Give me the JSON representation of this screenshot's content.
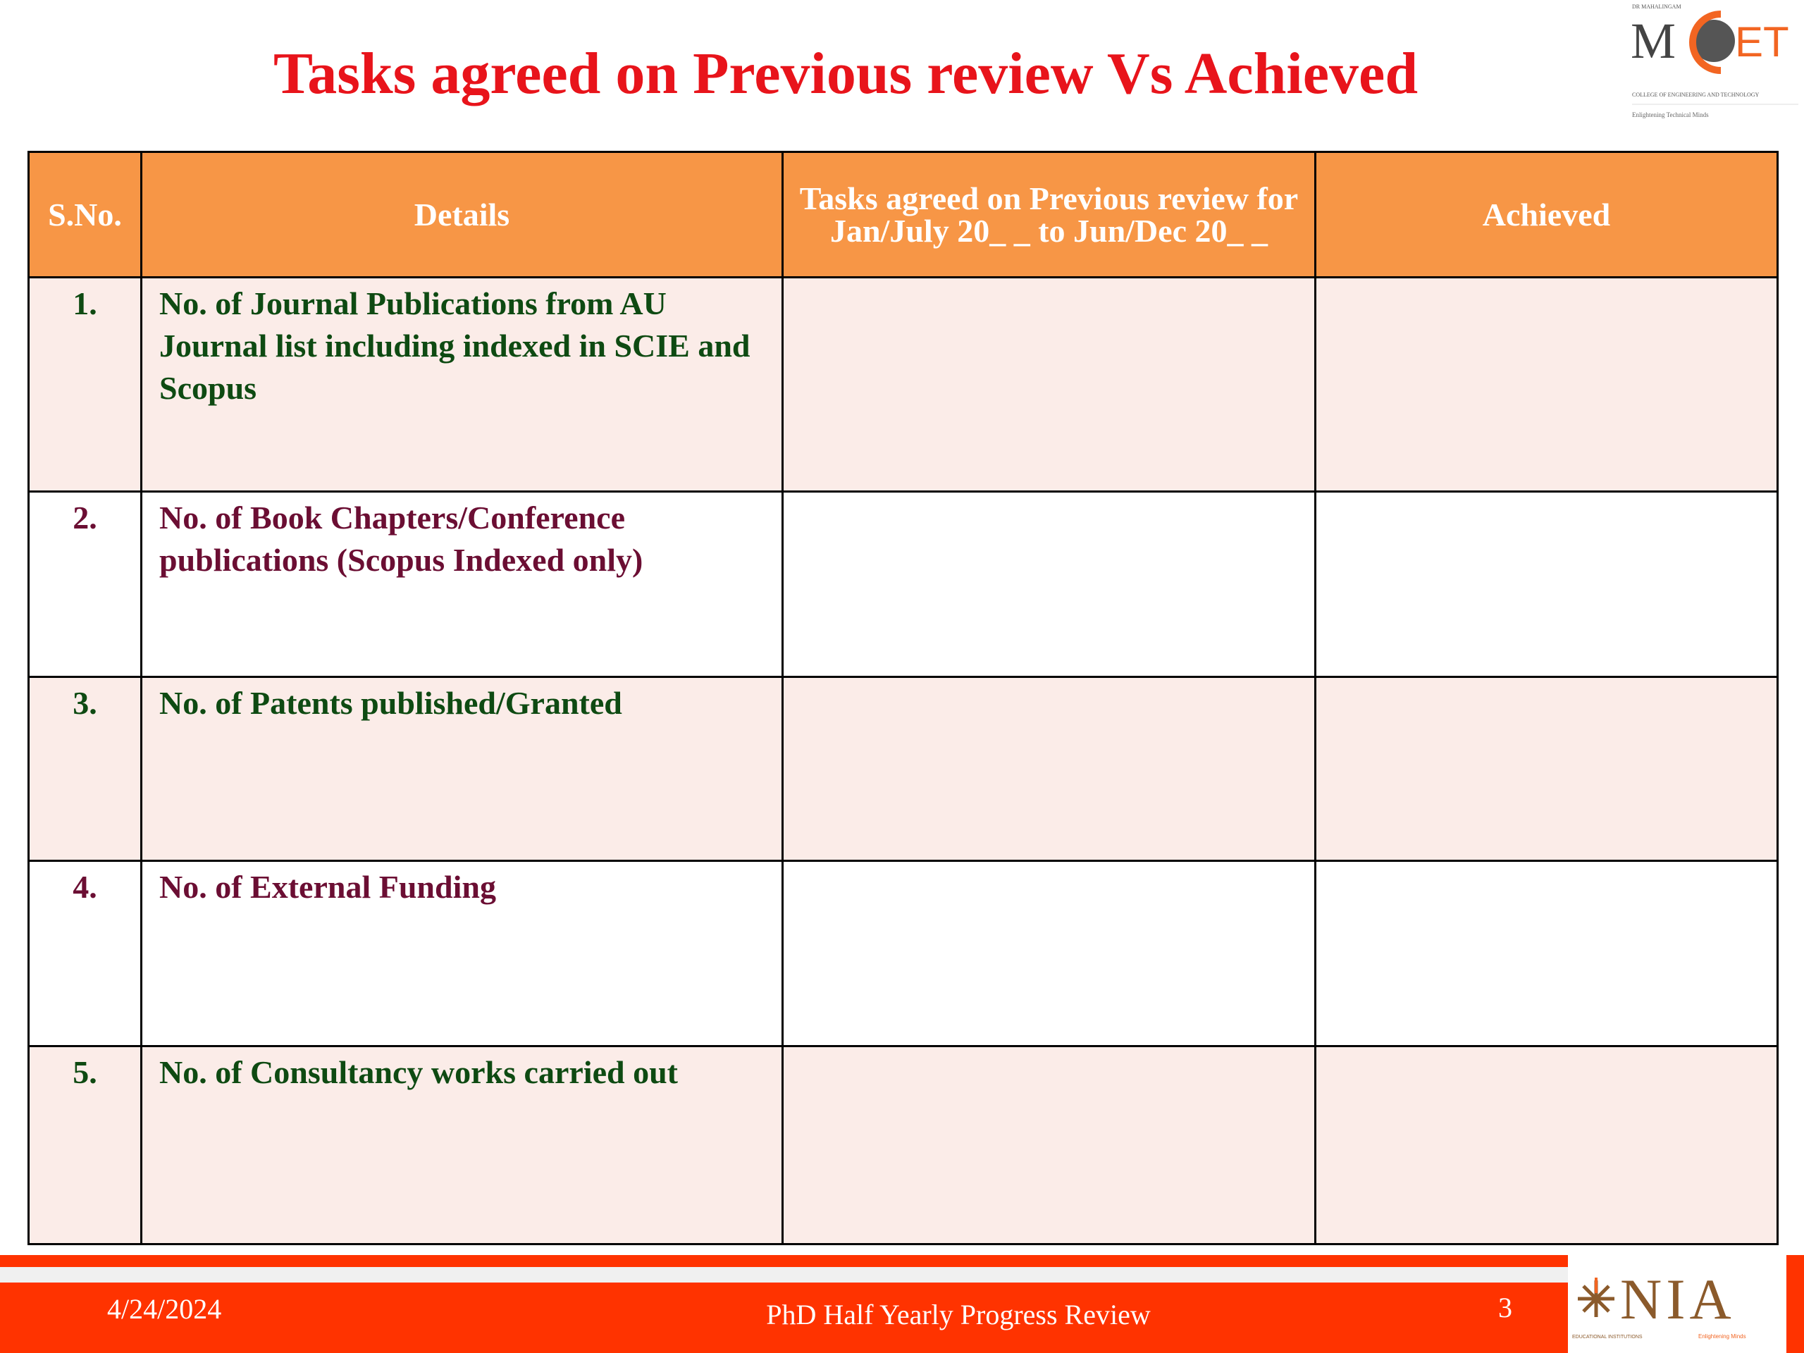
{
  "title": "Tasks agreed on Previous review Vs Achieved",
  "logo_top": {
    "small_text": "DR MAHALINGAM",
    "brand": "MCET",
    "subtitle": "COLLEGE OF ENGINEERING AND TECHNOLOGY",
    "tagline": "Enlightening Technical Minds"
  },
  "table": {
    "headers": [
      "S.No.",
      "Details",
      "Tasks agreed on Previous review for",
      "Jan/July 20_ _ to Jun/Dec 20_ _",
      "Achieved"
    ],
    "rows": [
      {
        "sno": "1.",
        "details": "No. of Journal Publications from AU Journal list including indexed in SCIE and Scopus",
        "agreed": "",
        "achieved": ""
      },
      {
        "sno": "2.",
        "details": "No. of Book Chapters/Conference publications (Scopus Indexed only)",
        "agreed": "",
        "achieved": ""
      },
      {
        "sno": "3.",
        "details": "No. of Patents published/Granted",
        "agreed": "",
        "achieved": ""
      },
      {
        "sno": "4.",
        "details": "No. of External Funding",
        "agreed": "",
        "achieved": ""
      },
      {
        "sno": "5.",
        "details": "No. of Consultancy works carried out",
        "agreed": "",
        "achieved": ""
      }
    ]
  },
  "footer": {
    "date": "4/24/2024",
    "center": "PhD Half Yearly Progress Review",
    "page": "3"
  },
  "logo_bottom": {
    "brand": "NIA",
    "left_text": "EDUCATIONAL INSTITUTIONS",
    "right_text": "Enlightening Minds"
  },
  "colors": {
    "title": "#E8141B",
    "header": "#F79646",
    "footer": "#FF3300",
    "green_text": "#0E4A12",
    "maroon_text": "#6B0E33",
    "row_tint": "#FBECE8"
  }
}
